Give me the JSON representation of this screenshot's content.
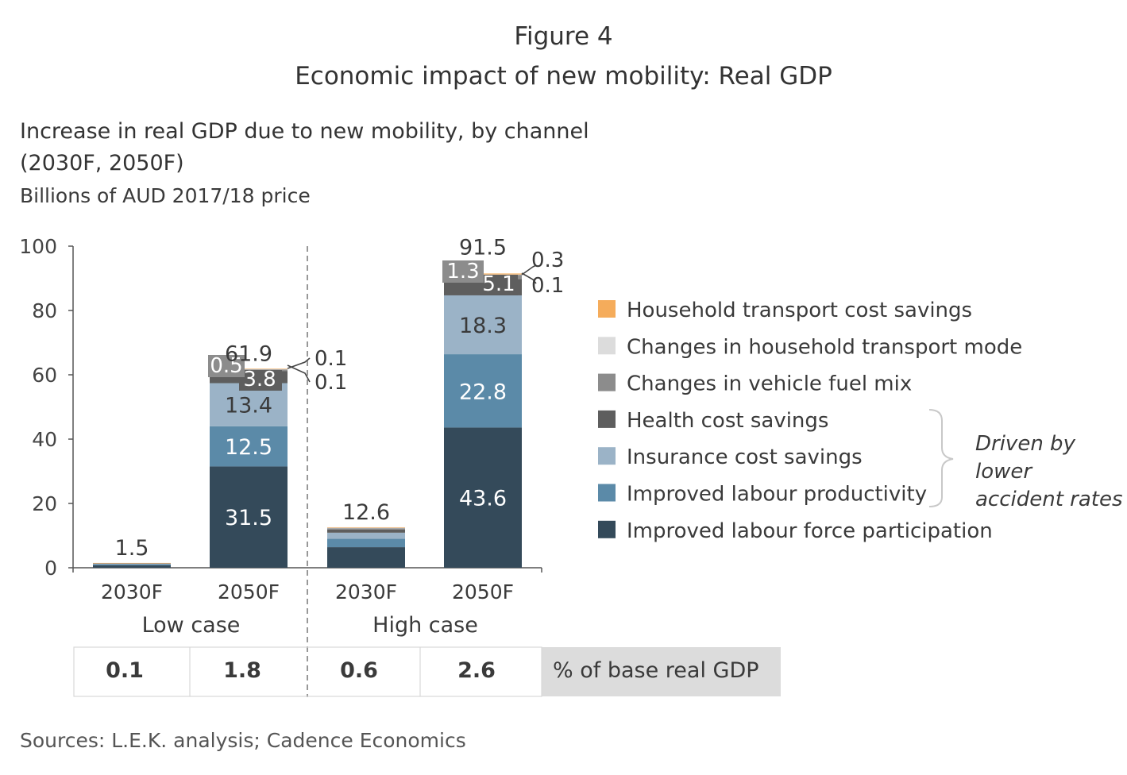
{
  "figure_label": "Figure 4",
  "title": "Economic impact of new mobility: Real GDP",
  "subtitle_line1": "Increase in real GDP due to new mobility, by channel",
  "subtitle_line2": "(2030F, 2050F)",
  "units": "Billions of AUD 2017/18 price",
  "source": "Sources: L.E.K. analysis; Cadence Economics",
  "colors": {
    "household_transport_cost_savings": "#F5AC5B",
    "changes_in_household_transport_mode": "#DCDCDC",
    "changes_in_vehicle_fuel_mix": "#8C8C8C",
    "health_cost_savings": "#5E5E5E",
    "insurance_cost_savings": "#9BB3C7",
    "improved_labour_productivity": "#5B8AA8",
    "improved_labour_force_participation": "#344A5A"
  },
  "chart_data": {
    "type": "bar",
    "stacked": true,
    "title": "Increase in real GDP due to new mobility, by channel",
    "ylabel": "Billions of AUD 2017/18 price",
    "ylim": [
      0,
      100
    ],
    "yticks": [
      0,
      20,
      40,
      60,
      80,
      100
    ],
    "categories": [
      "2030F",
      "2050F",
      "2030F",
      "2050F"
    ],
    "groups": [
      {
        "label": "Low case",
        "categories": [
          0,
          1
        ]
      },
      {
        "label": "High case",
        "categories": [
          2,
          3
        ]
      }
    ],
    "totals": [
      1.5,
      61.9,
      12.6,
      91.5
    ],
    "total_labels": [
      "1.5",
      "61.9",
      "12.6",
      "91.5"
    ],
    "series": [
      {
        "name": "Improved labour force participation",
        "color_key": "improved_labour_force_participation",
        "values": [
          0.8,
          31.5,
          6.4,
          43.6
        ],
        "labels": [
          "",
          "31.5",
          "",
          "43.6"
        ],
        "label_color": "#ffffff"
      },
      {
        "name": "Improved labour productivity",
        "color_key": "improved_labour_productivity",
        "values": [
          0.3,
          12.5,
          2.6,
          22.8
        ],
        "labels": [
          "",
          "12.5",
          "",
          "22.8"
        ],
        "label_color": "#ffffff"
      },
      {
        "name": "Insurance cost savings",
        "color_key": "insurance_cost_savings",
        "values": [
          0.2,
          13.4,
          1.9,
          18.3
        ],
        "labels": [
          "",
          "13.4",
          "",
          "18.3"
        ],
        "label_color": "#3a3a3a"
      },
      {
        "name": "Health cost savings",
        "color_key": "health_cost_savings",
        "values": [
          0.1,
          3.8,
          1.0,
          5.1
        ],
        "labels": [
          "",
          "3.8",
          "",
          "5.1"
        ],
        "label_color": "#ffffff"
      },
      {
        "name": "Changes in vehicle fuel mix",
        "color_key": "changes_in_vehicle_fuel_mix",
        "values": [
          0.05,
          0.5,
          0.4,
          1.3
        ],
        "labels": [
          "",
          "0.5",
          "",
          "1.3"
        ],
        "label_color": "#ffffff"
      },
      {
        "name": "Changes in household transport mode",
        "color_key": "changes_in_household_transport_mode",
        "values": [
          0.02,
          0.1,
          0.15,
          0.1
        ],
        "labels": [
          "",
          "0.1",
          "",
          "0.1"
        ],
        "label_color": "#3a3a3a"
      },
      {
        "name": "Household transport cost savings",
        "color_key": "household_transport_cost_savings",
        "values": [
          0.03,
          0.1,
          0.15,
          0.3
        ],
        "labels": [
          "",
          "0.1",
          "",
          "0.3"
        ],
        "label_color": "#3a3a3a"
      }
    ],
    "legend_order": [
      6,
      5,
      4,
      3,
      2,
      1,
      0
    ],
    "legend_placement": "right",
    "bracket_note": [
      "Driven by",
      "lower",
      "accident rates"
    ],
    "base_gdp_row": {
      "values": [
        "0.1",
        "1.8",
        "0.6",
        "2.6"
      ],
      "label": "% of base real GDP"
    }
  }
}
